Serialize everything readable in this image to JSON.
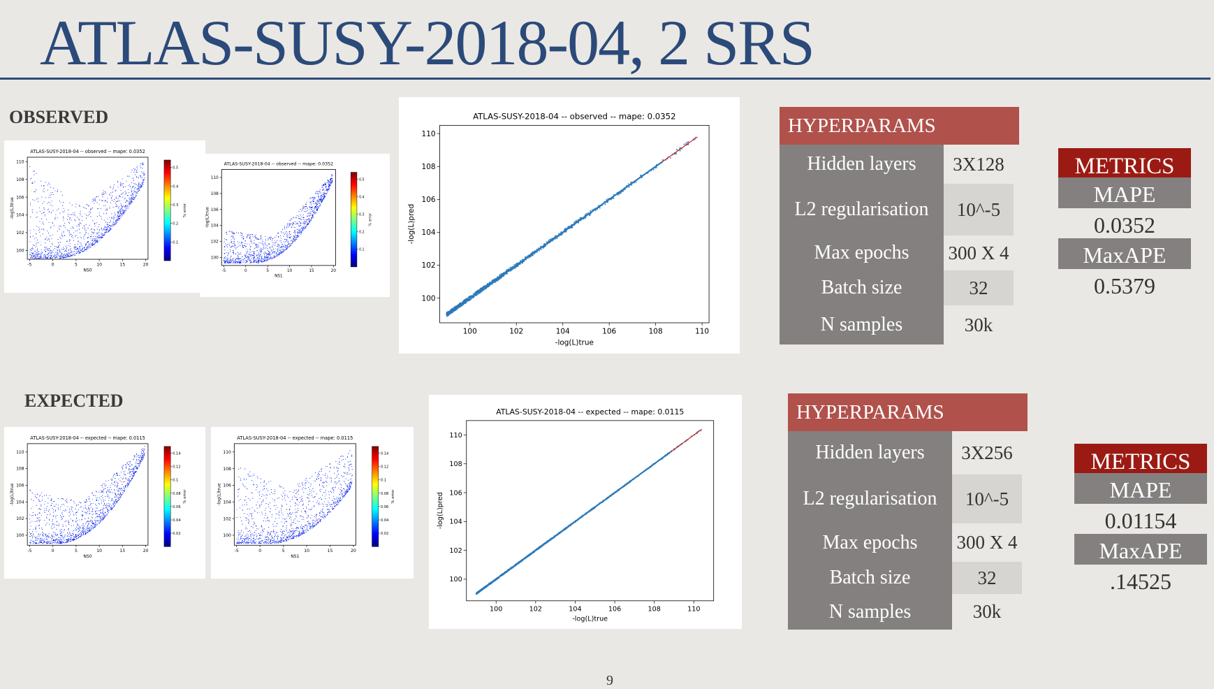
{
  "slide": {
    "title": "ATLAS-SUSY-2018-04, 2 SRS",
    "page_number": "9",
    "title_color": "#2b4a7a",
    "hyper_header_color": "#b0514b",
    "metrics_header_color": "#9b1b14",
    "param_cell_color": "#848080"
  },
  "observed": {
    "label": "OBSERVED",
    "hyperparams": {
      "header": "HYPERPARAMS",
      "rows": [
        {
          "name": "Hidden layers",
          "value": "3X128"
        },
        {
          "name": "L2 regularisation",
          "value": "10^-5"
        },
        {
          "name": "Max epochs",
          "value": "300 X 4"
        },
        {
          "name": "Batch size",
          "value": "32"
        },
        {
          "name": "N samples",
          "value": "30k"
        }
      ]
    },
    "metrics": {
      "header": "METRICS",
      "items": [
        {
          "name": "MAPE",
          "value": "0.0352"
        },
        {
          "name": "MaxAPE",
          "value": "0.5379"
        }
      ]
    }
  },
  "expected": {
    "label": "EXPECTED",
    "hyperparams": {
      "header": "HYPERPARAMS",
      "rows": [
        {
          "name": "Hidden layers",
          "value": "3X256"
        },
        {
          "name": "L2 regularisation",
          "value": "10^-5"
        },
        {
          "name": "Max epochs",
          "value": "300 X 4"
        },
        {
          "name": "Batch size",
          "value": "32"
        },
        {
          "name": "N samples",
          "value": "30k"
        }
      ]
    },
    "metrics": {
      "header": "METRICS",
      "items": [
        {
          "name": "MAPE",
          "value": "0.01154"
        },
        {
          "name": "MaxAPE",
          "value": ".14525"
        }
      ]
    }
  },
  "chart_data": [
    {
      "id": "obs_ns0",
      "type": "scatter",
      "title": "ATLAS-SUSY-2018-04 -- observed -- mape: 0.0352",
      "xlabel": "NS0",
      "ylabel": "-log(L)true",
      "cbar_label": "% error",
      "xlim": [
        -5.5,
        20.5
      ],
      "ylim": [
        99,
        110.5
      ],
      "xticks": [
        -5,
        0,
        5,
        10,
        15,
        20
      ],
      "yticks": [
        100,
        102,
        104,
        106,
        108,
        110
      ],
      "cticks": [
        0.1,
        0.2,
        0.3,
        0.4,
        0.5
      ],
      "cmax": 0.54,
      "band": {
        "center": 1,
        "floor": 99.1,
        "curv": 0.0245
      },
      "upper": {
        "left": 109.5,
        "mid": 105,
        "right": 110.2
      }
    },
    {
      "id": "obs_ns1",
      "type": "scatter",
      "title": "ATLAS-SUSY-2018-04 -- observed -- mape: 0.0352",
      "xlabel": "NS1",
      "ylabel": "-log(L)true",
      "cbar_label": "% error",
      "xlim": [
        -5.5,
        20.5
      ],
      "ylim": [
        99,
        111
      ],
      "xticks": [
        -5,
        0,
        5,
        10,
        15,
        20
      ],
      "yticks": [
        100,
        102,
        104,
        106,
        108,
        110
      ],
      "cticks": [
        0.1,
        0.2,
        0.3,
        0.4,
        0.5
      ],
      "cmax": 0.54,
      "band": {
        "center": 2,
        "floor": 99.3,
        "curv": 0.032
      },
      "upper": {
        "left": 103.5,
        "mid": 102.5,
        "right": 110.5
      }
    },
    {
      "id": "obs_pred",
      "type": "scatter",
      "title": "ATLAS-SUSY-2018-04 -- observed -- mape: 0.0352",
      "xlabel": "-log(L)true",
      "ylabel": "-log(L)pred",
      "xlim": [
        98.7,
        110.3
      ],
      "ylim": [
        98.5,
        110.5
      ],
      "xticks": [
        100,
        102,
        104,
        106,
        108,
        110
      ],
      "yticks": [
        100,
        102,
        104,
        106,
        108,
        110
      ],
      "range": [
        99,
        109.8
      ],
      "spread": 0.12,
      "reference_line": {
        "from": [
          99,
          99
        ],
        "to": [
          109.8,
          109.8
        ]
      }
    },
    {
      "id": "exp_ns0",
      "type": "scatter",
      "title": "ATLAS-SUSY-2018-04 -- expected -- mape: 0.0115",
      "xlabel": "NS0",
      "ylabel": "-log(L)true",
      "cbar_label": "% error",
      "xlim": [
        -5.5,
        20.5
      ],
      "ylim": [
        98.8,
        111
      ],
      "xticks": [
        -5,
        0,
        5,
        10,
        15,
        20
      ],
      "yticks": [
        100,
        102,
        104,
        106,
        108,
        110
      ],
      "cticks": [
        0.02,
        0.04,
        0.06,
        0.08,
        0.1,
        0.12,
        0.14
      ],
      "cmax": 0.15,
      "band": {
        "center": 1,
        "floor": 99,
        "curv": 0.03
      },
      "upper": {
        "left": 105.5,
        "mid": 104,
        "right": 110.8
      }
    },
    {
      "id": "exp_ns1",
      "type": "scatter",
      "title": "ATLAS-SUSY-2018-04 -- expected -- mape: 0.0115",
      "xlabel": "NS1",
      "ylabel": "-log(L)true",
      "cbar_label": "% error",
      "xlim": [
        -5.5,
        20.5
      ],
      "ylim": [
        98.8,
        111
      ],
      "xticks": [
        -5,
        0,
        5,
        10,
        15,
        20
      ],
      "yticks": [
        100,
        102,
        104,
        106,
        108,
        110
      ],
      "cticks": [
        0.02,
        0.04,
        0.06,
        0.08,
        0.1,
        0.12,
        0.14
      ],
      "cmax": 0.15,
      "band": {
        "center": 2,
        "floor": 99,
        "curv": 0.022
      },
      "upper": {
        "left": 108.5,
        "mid": 105.5,
        "right": 110.5
      }
    },
    {
      "id": "exp_pred",
      "type": "scatter",
      "title": "ATLAS-SUSY-2018-04 -- expected -- mape: 0.0115",
      "xlabel": "-log(L)true",
      "ylabel": "-log(L)pred",
      "xlim": [
        98.5,
        111
      ],
      "ylim": [
        98.5,
        111
      ],
      "xticks": [
        100,
        102,
        104,
        106,
        108,
        110
      ],
      "yticks": [
        100,
        102,
        104,
        106,
        108,
        110
      ],
      "range": [
        99,
        110.4
      ],
      "spread": 0.04,
      "reference_line": {
        "from": [
          99,
          99
        ],
        "to": [
          110.4,
          110.4
        ]
      }
    }
  ]
}
